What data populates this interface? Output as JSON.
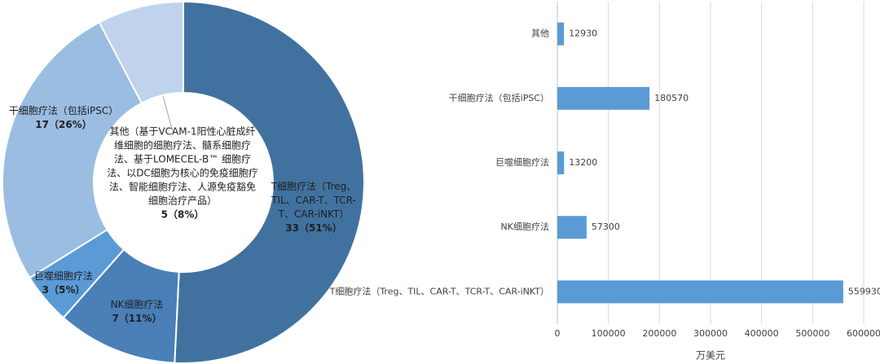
{
  "chart_data": [
    {
      "type": "donut",
      "categories": [
        "T细胞疗法（Treg、TIL、CAR-T、TCR-T、CAR-iNKT）",
        "NK细胞疗法",
        "巨噬细胞疗法",
        "干细胞疗法（包括iPSC）",
        "其他（基于VCAM-1阳性心脏成纤维细胞的细胞疗法、髓系细胞疗法、基于LOMECEL-B™ 细胞疗法、以DC细胞为核心的免疫细胞疗法、智能细胞疗法、人源免疫豁免细胞治疗产品）"
      ],
      "values": [
        33,
        7,
        3,
        17,
        5
      ],
      "value_labels": [
        "33（51%）",
        "7（11%）",
        "3（5%）",
        "17（26%）",
        "5（8%）"
      ],
      "colors": [
        "#41729f",
        "#4a7fb8",
        "#5a9ad5",
        "#9bbde2",
        "#c0d3ec"
      ]
    },
    {
      "type": "hbar",
      "categories": [
        "其他",
        "干细胞疗法（包括iPSC）",
        "巨噬细胞疗法",
        "NK细胞疗法",
        "T细胞疗法（Treg、TIL、CAR-T、TCR-T、CAR-iNKT）"
      ],
      "values": [
        12930,
        180570,
        13200,
        57300,
        559930
      ],
      "color": "#5b9bd5",
      "xlim": [
        0,
        600000
      ],
      "xticks": [
        0,
        100000,
        200000,
        300000,
        400000,
        500000,
        600000
      ],
      "xlabel": "万美元",
      "grid": true
    }
  ]
}
